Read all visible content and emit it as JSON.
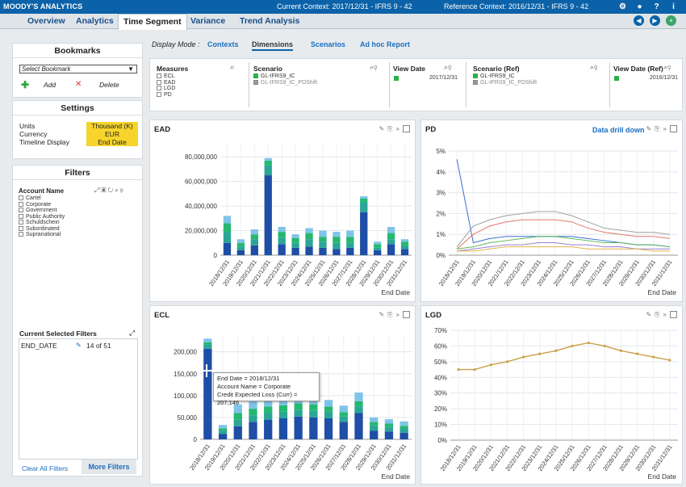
{
  "app": {
    "brand": "MOODY'S ANALYTICS",
    "current_context": "Current Context: 2017/12/31 - IFRS 9 - 42",
    "reference_context": "Reference Context: 2016/12/31 - IFRS 9 - 42"
  },
  "tabs": [
    "Overview",
    "Analytics",
    "Time Segment",
    "Variance",
    "Trend Analysis"
  ],
  "display_mode": {
    "label": "Display Mode :",
    "options": [
      "Contexts",
      "Dimensions",
      "Scenarios",
      "Ad hoc Report"
    ]
  },
  "bookmarks": {
    "title": "Bookmarks",
    "select": "Select Bookmark",
    "add": "Add",
    "delete": "Delete"
  },
  "settings": {
    "title": "Settings",
    "units_label": "Units",
    "units_value": "Thousand (K)",
    "currency_label": "Currency",
    "currency_value": "EUR",
    "timeline_label": "Timeline Display",
    "timeline_value": "End Date"
  },
  "filters": {
    "title": "Filters",
    "account_name": "Account Name",
    "items": [
      "Cartel",
      "Corporate",
      "Government",
      "Public Authority",
      "Schuldschein",
      "Subordinated",
      "Supranational"
    ],
    "current_title": "Current Selected Filters",
    "current_key": "END_DATE",
    "current_value": "14 of 51",
    "clear_all": "Clear All Filters",
    "more": "More Filters"
  },
  "selectors": {
    "measures_title": "Measures",
    "measures": [
      "ECL",
      "EAD",
      "LGD",
      "PD"
    ],
    "scenario_title": "Scenario",
    "scenarios": [
      "GL-IFRS9_IC",
      "GL-IFRS9_IC_PDShift"
    ],
    "view_date_title": "View Date",
    "view_date": "2017/12/31",
    "scenario_ref_title": "Scenario (Ref)",
    "scenario_ref": [
      "GL-IFRS9_IC",
      "GL-IFRS9_IC_PDShift"
    ],
    "view_date_ref_title": "View Date (Ref)",
    "view_date_ref": "2016/12/31"
  },
  "charts": {
    "ead_title": "EAD",
    "pd_title": "PD",
    "pd_drill": "Data drill down",
    "ecl_title": "ECL",
    "lgd_title": "LGD",
    "xlabel": "End Date"
  },
  "tooltip": {
    "line1": "End Date = 2018/12/31",
    "line2": "Account Name = Corporate",
    "line3": "Credit Expected Loss (Curr) = 207,146"
  },
  "colors": {
    "blue": "#1f4ea6",
    "teal": "#2aa596",
    "green": "#26b870",
    "lightblue": "#7fc4e8",
    "grey": "#9aa2aa",
    "gold": "#c9a04a"
  },
  "chart_data": [
    {
      "type": "bar",
      "title": "EAD",
      "xlabel": "End Date",
      "categories": [
        "2018/12/31",
        "2019/12/31",
        "2020/12/31",
        "2021/12/31",
        "2022/12/31",
        "2023/12/31",
        "2024/12/31",
        "2025/12/31",
        "2026/12/31",
        "2027/12/31",
        "2028/12/31",
        "2029/12/31",
        "2030/12/31",
        "2031/12/31"
      ],
      "ylim": [
        0,
        90000000
      ],
      "yticks": [
        "0",
        "20,000,000",
        "40,000,000",
        "60,000,000",
        "80,000,000"
      ],
      "series": [
        {
          "values": [
            10000000,
            4000000,
            8000000,
            65000000,
            9000000,
            6000000,
            7000000,
            6000000,
            5000000,
            6000000,
            35000000,
            4000000,
            9000000,
            5000000
          ]
        },
        {
          "values": [
            9000000,
            3000000,
            5000000,
            8000000,
            5000000,
            4000000,
            6000000,
            5000000,
            5000000,
            4000000,
            8000000,
            2000000,
            4000000,
            3000000
          ]
        },
        {
          "values": [
            7000000,
            3000000,
            4000000,
            4000000,
            5000000,
            4000000,
            5000000,
            4000000,
            5000000,
            5000000,
            3000000,
            3000000,
            5000000,
            3000000
          ]
        },
        {
          "values": [
            6000000,
            3000000,
            4000000,
            2000000,
            4000000,
            3000000,
            4000000,
            5000000,
            4000000,
            5000000,
            2000000,
            2000000,
            5000000,
            2000000
          ]
        }
      ]
    },
    {
      "type": "line",
      "title": "PD",
      "xlabel": "End Date",
      "categories": [
        "2018/12/31",
        "2019/12/31",
        "2020/12/31",
        "2021/12/31",
        "2022/12/31",
        "2023/12/31",
        "2024/12/31",
        "2025/12/31",
        "2026/12/31",
        "2027/12/31",
        "2028/12/31",
        "2029/12/31",
        "2030/12/31",
        "2031/12/31"
      ],
      "ylim": [
        0,
        0.05
      ],
      "yticks": [
        "0%",
        "1%",
        "2%",
        "3%",
        "4%",
        "5%"
      ],
      "series": [
        {
          "values": [
            0.046,
            0.006,
            0.008,
            0.009,
            0.009,
            0.009,
            0.009,
            0.009,
            0.008,
            0.007,
            0.006,
            0.005,
            0.005,
            0.004
          ]
        },
        {
          "values": [
            0.004,
            0.014,
            0.017,
            0.019,
            0.02,
            0.021,
            0.021,
            0.019,
            0.016,
            0.013,
            0.012,
            0.011,
            0.011,
            0.01
          ]
        },
        {
          "values": [
            0.003,
            0.01,
            0.014,
            0.016,
            0.017,
            0.017,
            0.017,
            0.016,
            0.013,
            0.011,
            0.01,
            0.009,
            0.009,
            0.008
          ]
        },
        {
          "values": [
            0.003,
            0.004,
            0.006,
            0.007,
            0.008,
            0.009,
            0.009,
            0.008,
            0.007,
            0.006,
            0.006,
            0.005,
            0.005,
            0.004
          ]
        },
        {
          "values": [
            0.002,
            0.003,
            0.004,
            0.005,
            0.005,
            0.006,
            0.006,
            0.005,
            0.005,
            0.004,
            0.004,
            0.003,
            0.003,
            0.003
          ]
        },
        {
          "values": [
            0.002,
            0.002,
            0.003,
            0.004,
            0.004,
            0.004,
            0.004,
            0.004,
            0.003,
            0.003,
            0.003,
            0.003,
            0.002,
            0.002
          ]
        }
      ]
    },
    {
      "type": "bar",
      "title": "ECL",
      "xlabel": "End Date",
      "categories": [
        "2018/12/31",
        "2019/12/31",
        "2020/12/31",
        "2021/12/31",
        "2022/12/31",
        "2023/12/31",
        "2024/12/31",
        "2025/12/31",
        "2026/12/31",
        "2027/12/31",
        "2028/12/31",
        "2029/12/31",
        "2030/12/31",
        "2031/12/31"
      ],
      "ylim": [
        0,
        240000
      ],
      "yticks": [
        "0",
        "50,000",
        "100,000",
        "150,000",
        "200,000"
      ],
      "series": [
        {
          "values": [
            207146,
            12000,
            30000,
            40000,
            45000,
            48000,
            52000,
            50000,
            48000,
            40000,
            60000,
            20000,
            18000,
            15000
          ]
        },
        {
          "values": [
            10000,
            8000,
            15000,
            15000,
            15000,
            15000,
            15000,
            15000,
            15000,
            12000,
            15000,
            12000,
            10000,
            10000
          ]
        },
        {
          "values": [
            5000,
            5000,
            15000,
            15000,
            15000,
            15000,
            15000,
            15000,
            12000,
            10000,
            12000,
            8000,
            8000,
            6000
          ]
        },
        {
          "values": [
            8000,
            8000,
            20000,
            20000,
            20000,
            20000,
            20000,
            35000,
            15000,
            15000,
            20000,
            10000,
            10000,
            10000
          ]
        }
      ]
    },
    {
      "type": "line",
      "title": "LGD",
      "xlabel": "End Date",
      "categories": [
        "2018/12/31",
        "2019/12/31",
        "2020/12/31",
        "2021/12/31",
        "2022/12/31",
        "2023/12/31",
        "2024/12/31",
        "2025/12/31",
        "2026/12/31",
        "2027/12/31",
        "2028/12/31",
        "2029/12/31",
        "2030/12/31",
        "2031/12/31"
      ],
      "ylim": [
        0,
        0.7
      ],
      "yticks": [
        "0%",
        "10%",
        "20%",
        "30%",
        "40%",
        "50%",
        "60%",
        "70%"
      ],
      "series": [
        {
          "values": [
            0.45,
            0.45,
            0.48,
            0.5,
            0.53,
            0.55,
            0.57,
            0.6,
            0.62,
            0.6,
            0.57,
            0.55,
            0.53,
            0.51
          ]
        }
      ]
    }
  ]
}
